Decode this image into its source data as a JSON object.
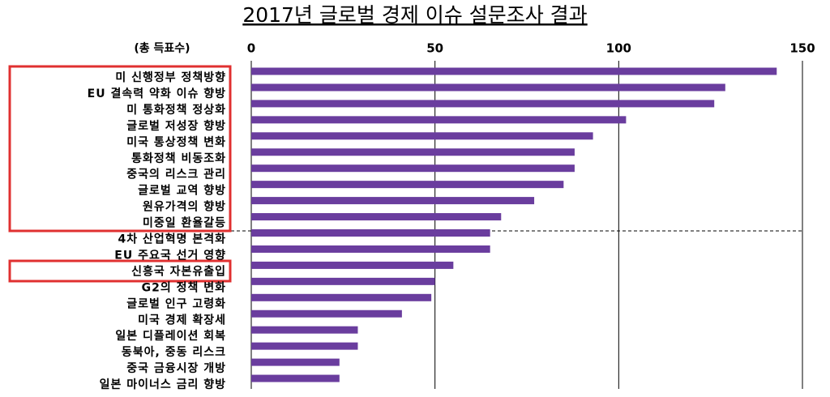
{
  "chart_data": {
    "type": "bar",
    "orientation": "horizontal",
    "title": "2017년 글로벌 경제 이슈 설문조사 결과",
    "x_label": "(총 득표수)",
    "categories": [
      "미 신행정부 정책방향",
      "EU 결속력 약화 이슈 향방",
      "미 통화정책 정상화",
      "글로벌 저성장 향방",
      "미국 통상정책 변화",
      "통화정책 비동조화",
      "중국의 리스크 관리",
      "글로벌 교역 향방",
      "원유가격의 향방",
      "미중일 환율갈등",
      "4차 산업혁명 본격화",
      "EU 주요국 선거 영향",
      "신흥국 자본유출입",
      "G2의 정책 변화",
      "글로벌 인구 고령화",
      "미국 경제 확장세",
      "일본 디플레이션 회복",
      "동북아, 중동 리스크",
      "중국 금융시장 개방",
      "일본 마이너스 금리 향방"
    ],
    "values": [
      143,
      129,
      126,
      102,
      93,
      88,
      88,
      85,
      77,
      68,
      65,
      65,
      55,
      50,
      49,
      41,
      29,
      29,
      24,
      24
    ],
    "color": "#6a3d9e",
    "xlim": [
      0,
      150
    ],
    "xticks": [
      0,
      50,
      100,
      150
    ],
    "grid": true
  }
}
